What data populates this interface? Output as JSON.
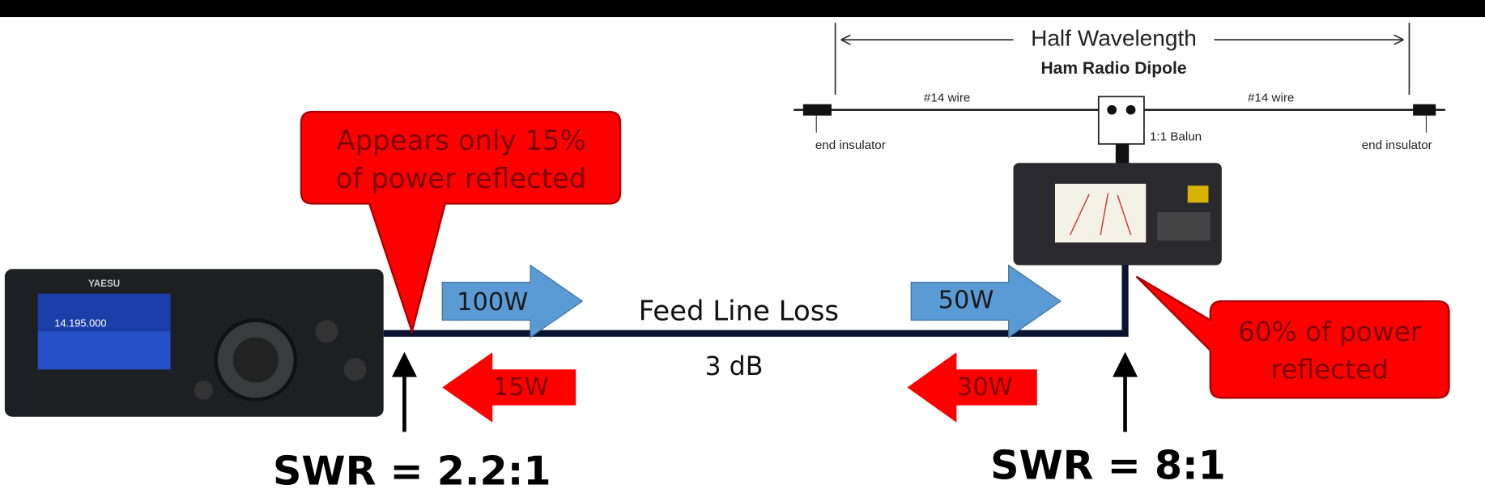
{
  "dipole": {
    "title": "Half Wavelength",
    "subtitle": "Ham Radio Dipole",
    "wire_left": "#14 wire",
    "wire_right": "#14 wire",
    "balun": "1:1 Balun",
    "insulator_left": "end insulator",
    "insulator_right": "end insulator"
  },
  "callouts": [
    {
      "lines": [
        "Appears only 15%",
        "of power reflected"
      ]
    },
    {
      "lines": [
        "60% of power",
        "reflected"
      ]
    }
  ],
  "forward": [
    "100W",
    "50W"
  ],
  "reflected": [
    "15W",
    "30W"
  ],
  "feed_line": {
    "label": "Feed Line Loss",
    "loss": "3 dB"
  },
  "swr": [
    "SWR = 2.2:1",
    "SWR = 8:1"
  ],
  "radio": {
    "brand": "YAESU",
    "frequency": "14.195.000"
  }
}
